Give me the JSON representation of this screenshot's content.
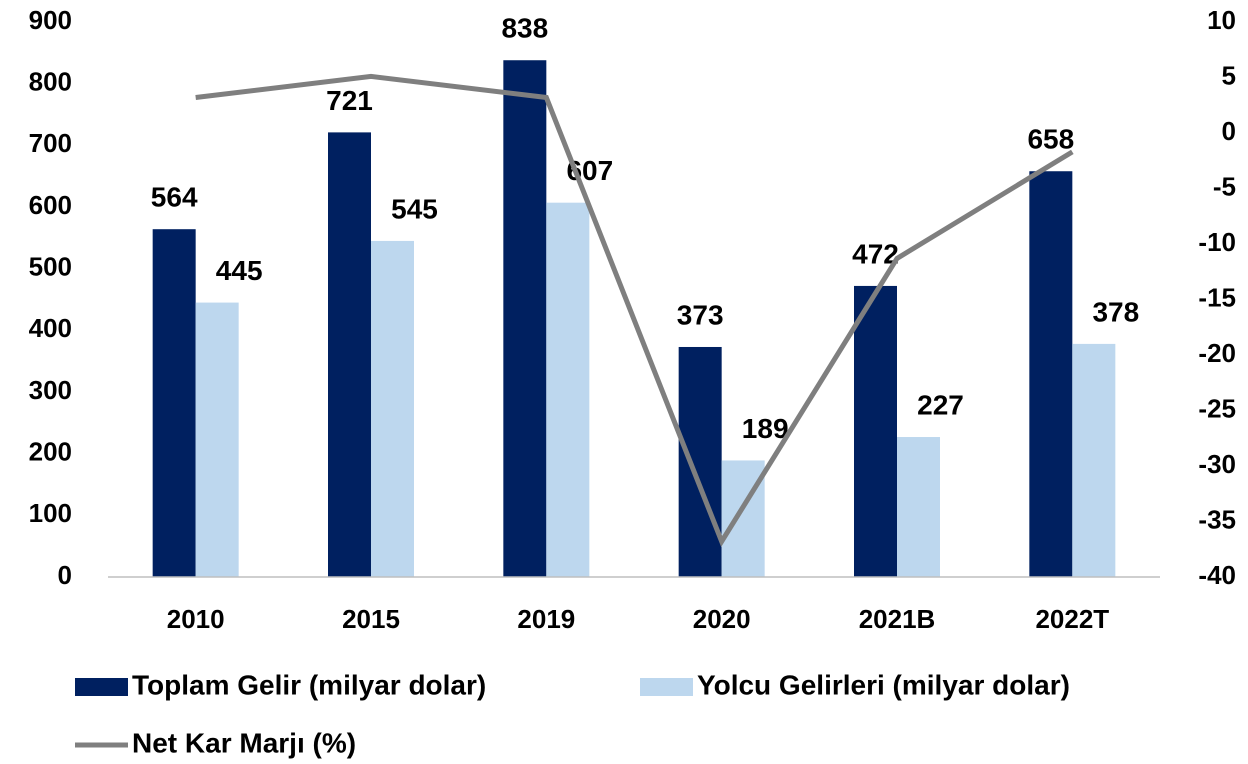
{
  "chart_data": {
    "type": "bar-line",
    "categories": [
      "2010",
      "2015",
      "2019",
      "2020",
      "2021B",
      "2022T"
    ],
    "series": [
      {
        "name": "Toplam Gelir (milyar dolar)",
        "type": "bar",
        "color": "#002060",
        "values": [
          564,
          721,
          838,
          373,
          472,
          658
        ]
      },
      {
        "name": "Yolcu Gelirleri (milyar dolar)",
        "type": "bar",
        "color": "#bdd7ee",
        "values": [
          445,
          545,
          607,
          189,
          227,
          378
        ]
      },
      {
        "name": "Net Kar Marjı (%)",
        "type": "line",
        "axis": "y2",
        "color": "#7f7f7f",
        "values": [
          3.2,
          5.1,
          3.2,
          -36.8,
          -11.3,
          -1.7
        ]
      }
    ],
    "ylim": [
      0,
      900
    ],
    "yticks": [
      0,
      100,
      200,
      300,
      400,
      500,
      600,
      700,
      800,
      900
    ],
    "y2lim": [
      -40,
      10
    ],
    "y2ticks": [
      -40,
      -35,
      -30,
      -25,
      -20,
      -15,
      -10,
      -5,
      0,
      5,
      10
    ],
    "grid": false,
    "legend": "bottom"
  }
}
